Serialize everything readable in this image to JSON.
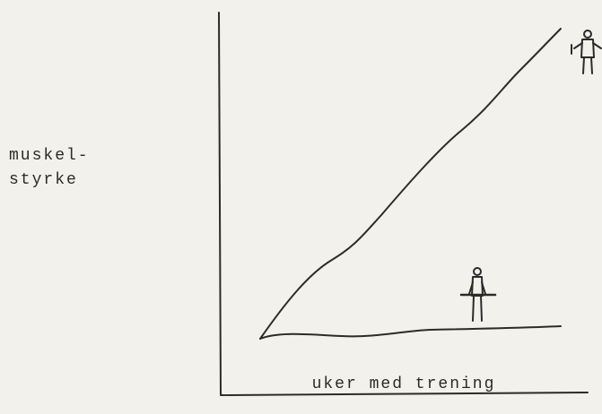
{
  "y_label": [
    "muskel-",
    "styrke"
  ],
  "x_label": "uker med trening"
}
